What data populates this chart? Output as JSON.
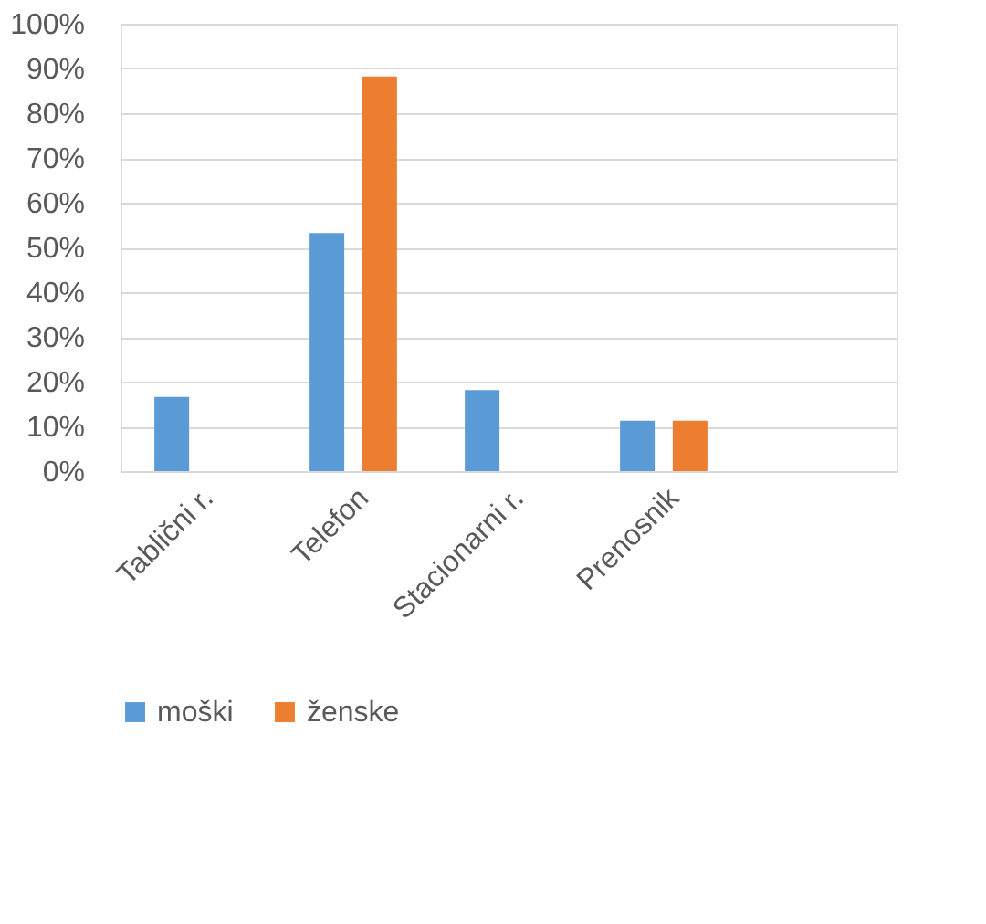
{
  "chart_data": {
    "type": "bar",
    "categories": [
      "Tablični r.",
      "Telefon",
      "Stacionarni r.",
      "Prenosnik",
      null
    ],
    "series": [
      {
        "name": "moški",
        "color": "#5b9bd5",
        "values": [
          16.6,
          53.2,
          18.1,
          11.3,
          null
        ]
      },
      {
        "name": "ženske",
        "color": "#ed7d31",
        "values": [
          null,
          88.2,
          null,
          11.3,
          null
        ]
      }
    ],
    "ylim": [
      0,
      100
    ],
    "yticks": [
      {
        "value": 0,
        "label": "0%"
      },
      {
        "value": 10,
        "label": "10%"
      },
      {
        "value": 20,
        "label": "20%"
      },
      {
        "value": 30,
        "label": "30%"
      },
      {
        "value": 40,
        "label": "40%"
      },
      {
        "value": 50,
        "label": "50%"
      },
      {
        "value": 60,
        "label": "60%"
      },
      {
        "value": 70,
        "label": "70%"
      },
      {
        "value": 80,
        "label": "80%"
      },
      {
        "value": 90,
        "label": "90%"
      },
      {
        "value": 100,
        "label": "100%"
      }
    ],
    "grid": "y",
    "legend": "bottom"
  }
}
